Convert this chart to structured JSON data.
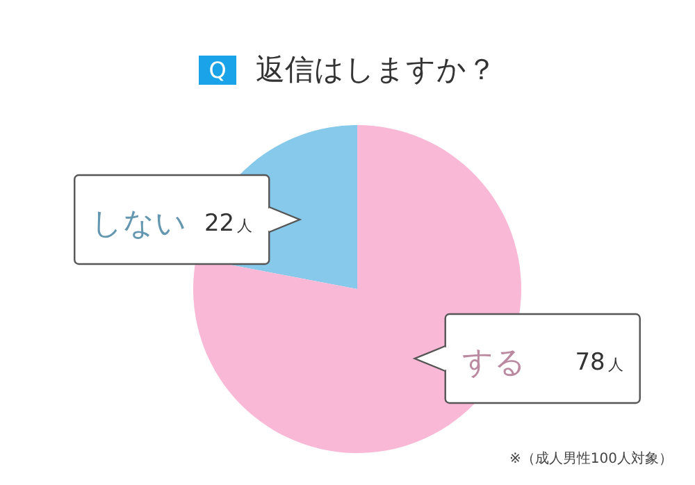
{
  "chart_data": {
    "type": "pie",
    "title": "返信はしますか？",
    "categories": [
      "しない",
      "する"
    ],
    "values": [
      22,
      78
    ],
    "colors": [
      "#87c9ea",
      "#f9b8d6"
    ],
    "value_labels": [
      "22人",
      "78人"
    ],
    "annotations": [
      "Q",
      "※（成人男性100人対象）"
    ]
  }
}
